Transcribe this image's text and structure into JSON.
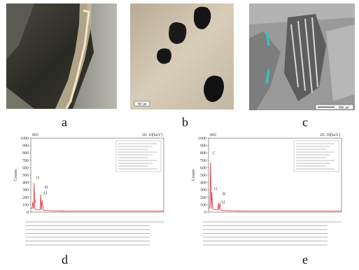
{
  "panels": [
    {
      "label": "a"
    },
    {
      "label": "b",
      "scale_bar": "50 μm"
    },
    {
      "label": "c",
      "scale_bar": "500 μm"
    },
    {
      "label": "d"
    },
    {
      "label": "e"
    }
  ],
  "chart_data": [
    {
      "type": "line",
      "header_left": "003",
      "header_right": "20. 10[keV]",
      "ylabel": "Counts",
      "ylim": [
        0,
        1000
      ],
      "yticks": [
        0,
        100,
        200,
        300,
        400,
        500,
        600,
        700,
        800,
        900,
        1000
      ],
      "xlim": [
        0,
        20
      ],
      "peaks": [
        {
          "label": "C",
          "x": 0.28,
          "y": 110
        },
        {
          "label": "O",
          "x": 0.52,
          "y": 430
        },
        {
          "label": "Al",
          "x": 1.49,
          "y": 220
        },
        {
          "label": "Si",
          "x": 1.74,
          "y": 300
        }
      ]
    },
    {
      "type": "line",
      "header_left": "002",
      "header_right": "20. 10[keV]",
      "ylabel": "Counts",
      "ylim": [
        0,
        1000
      ],
      "yticks": [
        0,
        100,
        200,
        300,
        400,
        500,
        600,
        700,
        800,
        900,
        1000
      ],
      "xlim": [
        0,
        20
      ],
      "peaks": [
        {
          "label": "C",
          "x": 0.28,
          "y": 760
        },
        {
          "label": "O",
          "x": 0.52,
          "y": 280
        },
        {
          "label": "Al",
          "x": 1.49,
          "y": 100
        },
        {
          "label": "Si",
          "x": 1.74,
          "y": 210
        }
      ]
    }
  ]
}
